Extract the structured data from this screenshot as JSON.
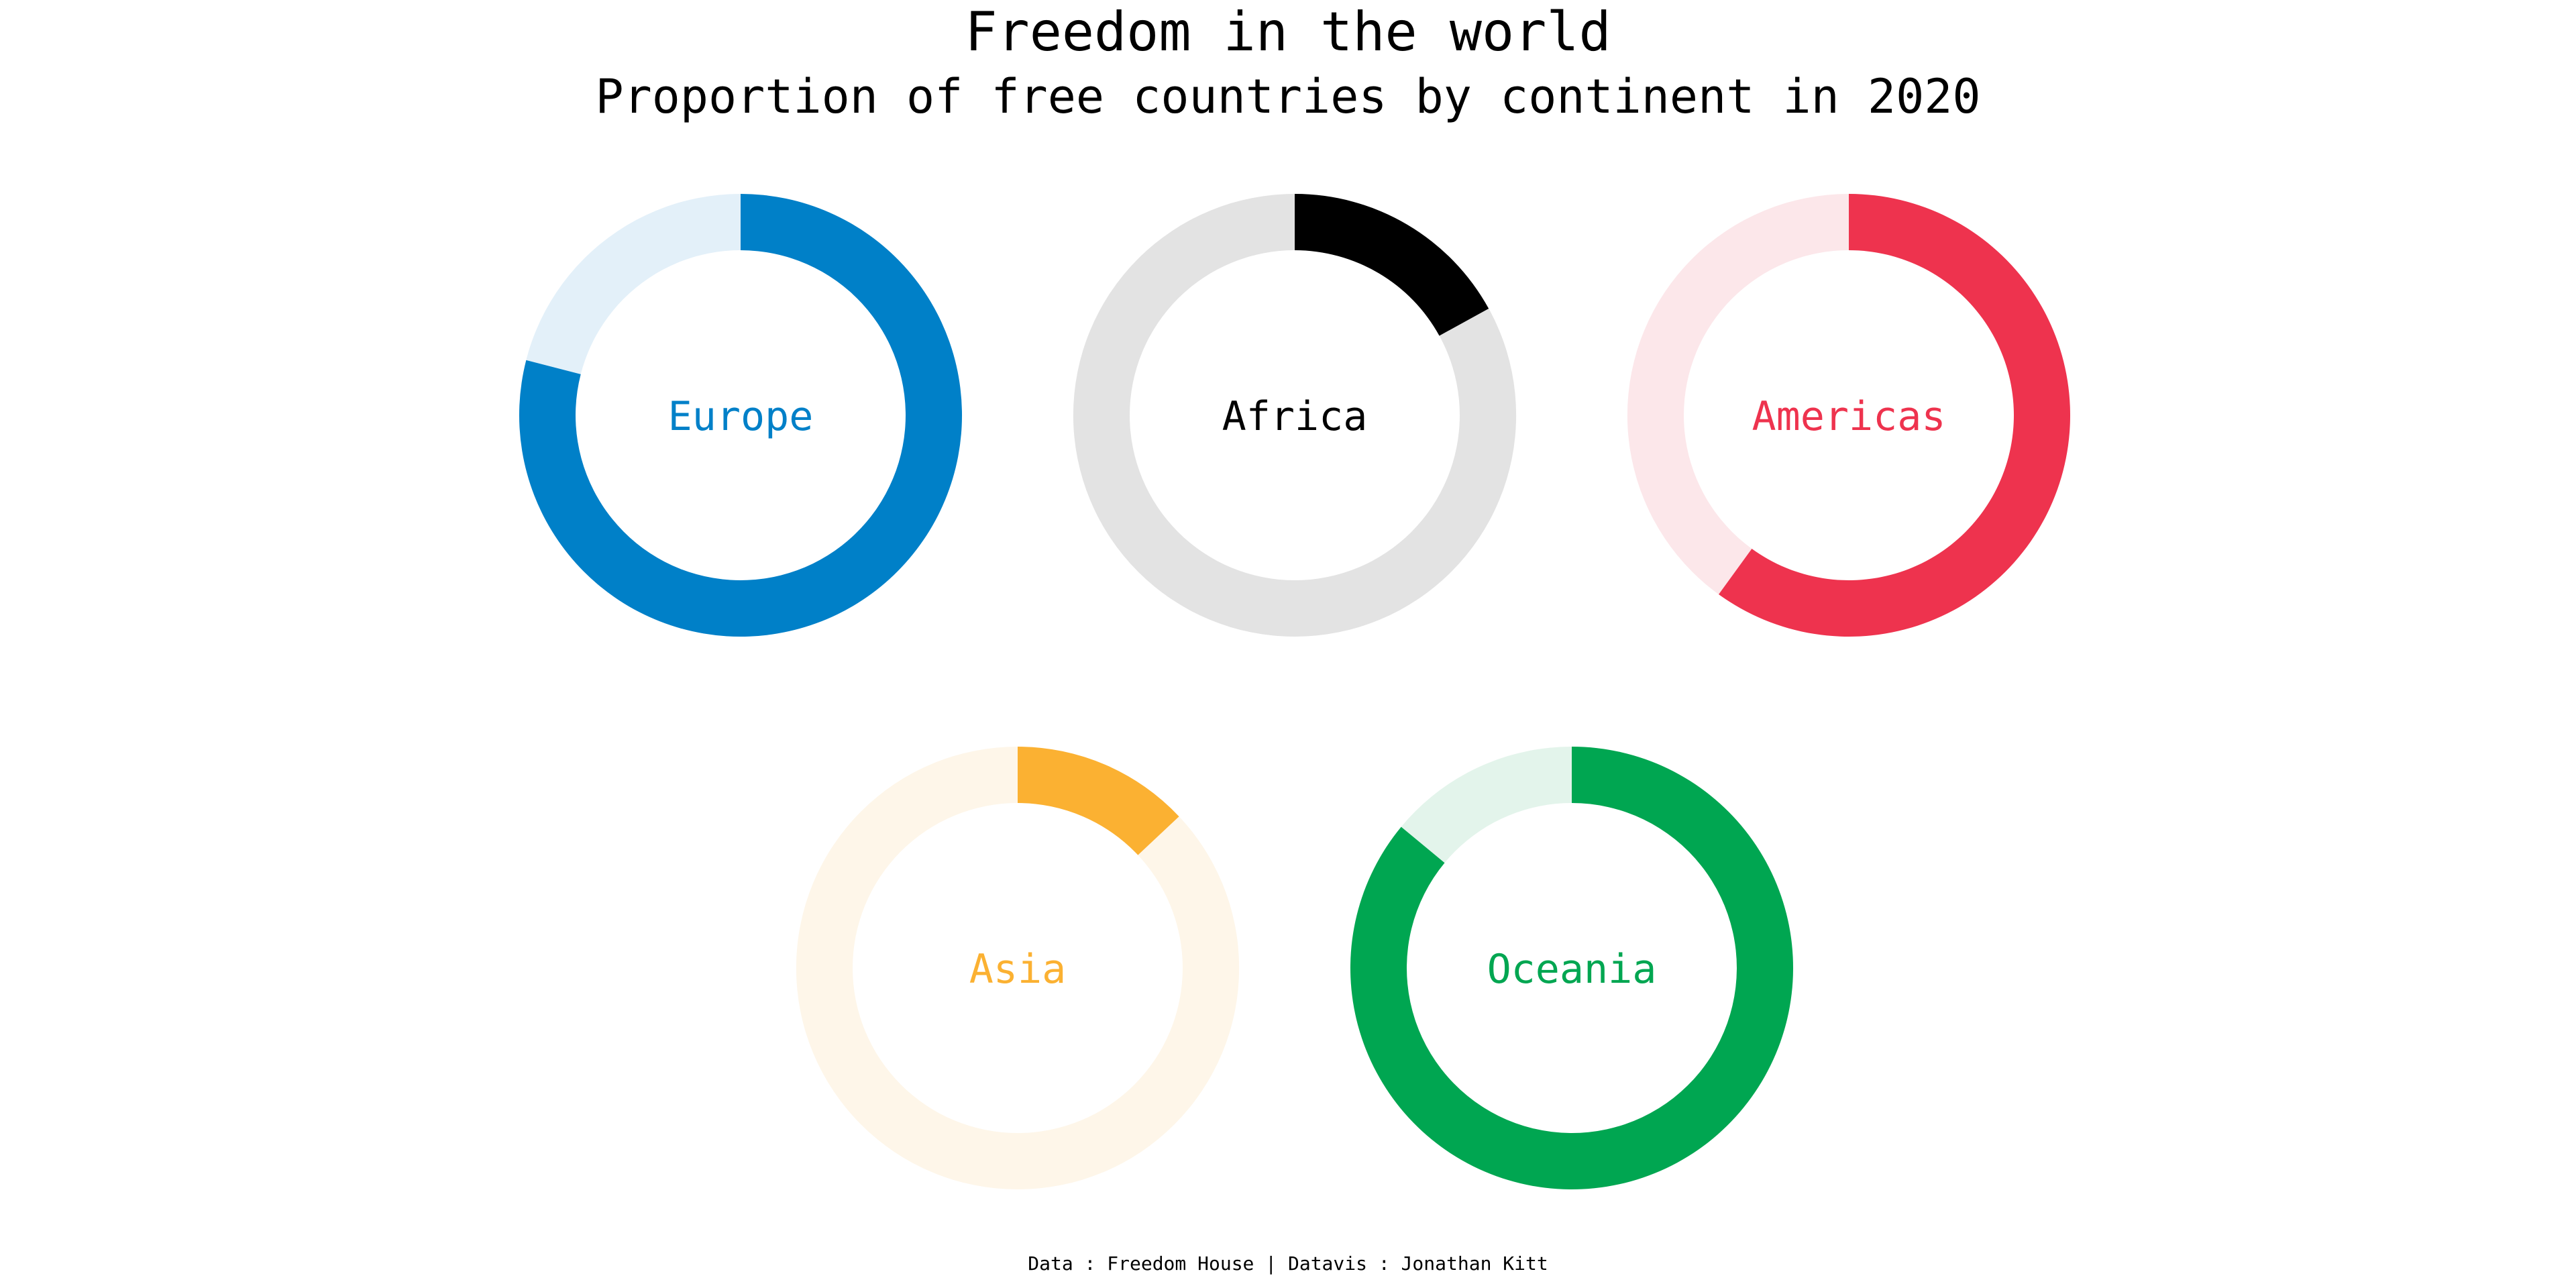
{
  "header": {
    "title": "Freedom in the world",
    "subtitle": "Proportion of free countries by continent in 2020"
  },
  "footer": {
    "caption": "Data : Freedom House | Datavis : Jonathan Kitt"
  },
  "chart_data": {
    "type": "donut",
    "title": "Freedom in the world",
    "subtitle": "Proportion of free countries by continent in 2020",
    "value_unit": "fraction",
    "series": [
      {
        "name": "Europe",
        "value": 0.79,
        "color": "#0080C8",
        "track_color": "#E3F0F9"
      },
      {
        "name": "Africa",
        "value": 0.17,
        "color": "#000000",
        "track_color": "#E3E3E3"
      },
      {
        "name": "Americas",
        "value": 0.6,
        "color": "#EE334E",
        "track_color": "#FCE7EA"
      },
      {
        "name": "Asia",
        "value": 0.13,
        "color": "#FBB132",
        "track_color": "#FEF6E9"
      },
      {
        "name": "Oceania",
        "value": 0.86,
        "color": "#00A651",
        "track_color": "#E3F4EB"
      }
    ]
  }
}
